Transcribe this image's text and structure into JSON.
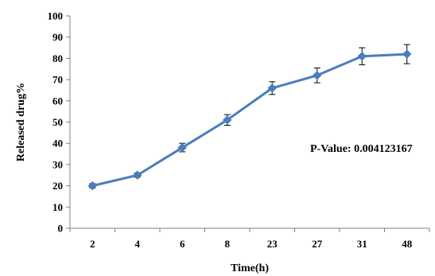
{
  "chart_data": {
    "type": "line",
    "title": "",
    "xlabel": "Time(h)",
    "ylabel": "Released drug%",
    "categories": [
      "2",
      "4",
      "6",
      "8",
      "23",
      "27",
      "31",
      "48"
    ],
    "series": [
      {
        "values": [
          20,
          25,
          38,
          51,
          66,
          72,
          81,
          82
        ],
        "error": [
          1,
          1,
          2,
          2.5,
          3,
          3.5,
          4,
          4.5
        ],
        "color": "#4a7ebb",
        "marker": "diamond"
      }
    ],
    "ylim": [
      0,
      100
    ],
    "yticks": [
      0,
      10,
      20,
      30,
      40,
      50,
      60,
      70,
      80,
      90,
      100
    ],
    "grid": false,
    "legend": "none",
    "annotation": "P-Value: 0.004123167"
  }
}
